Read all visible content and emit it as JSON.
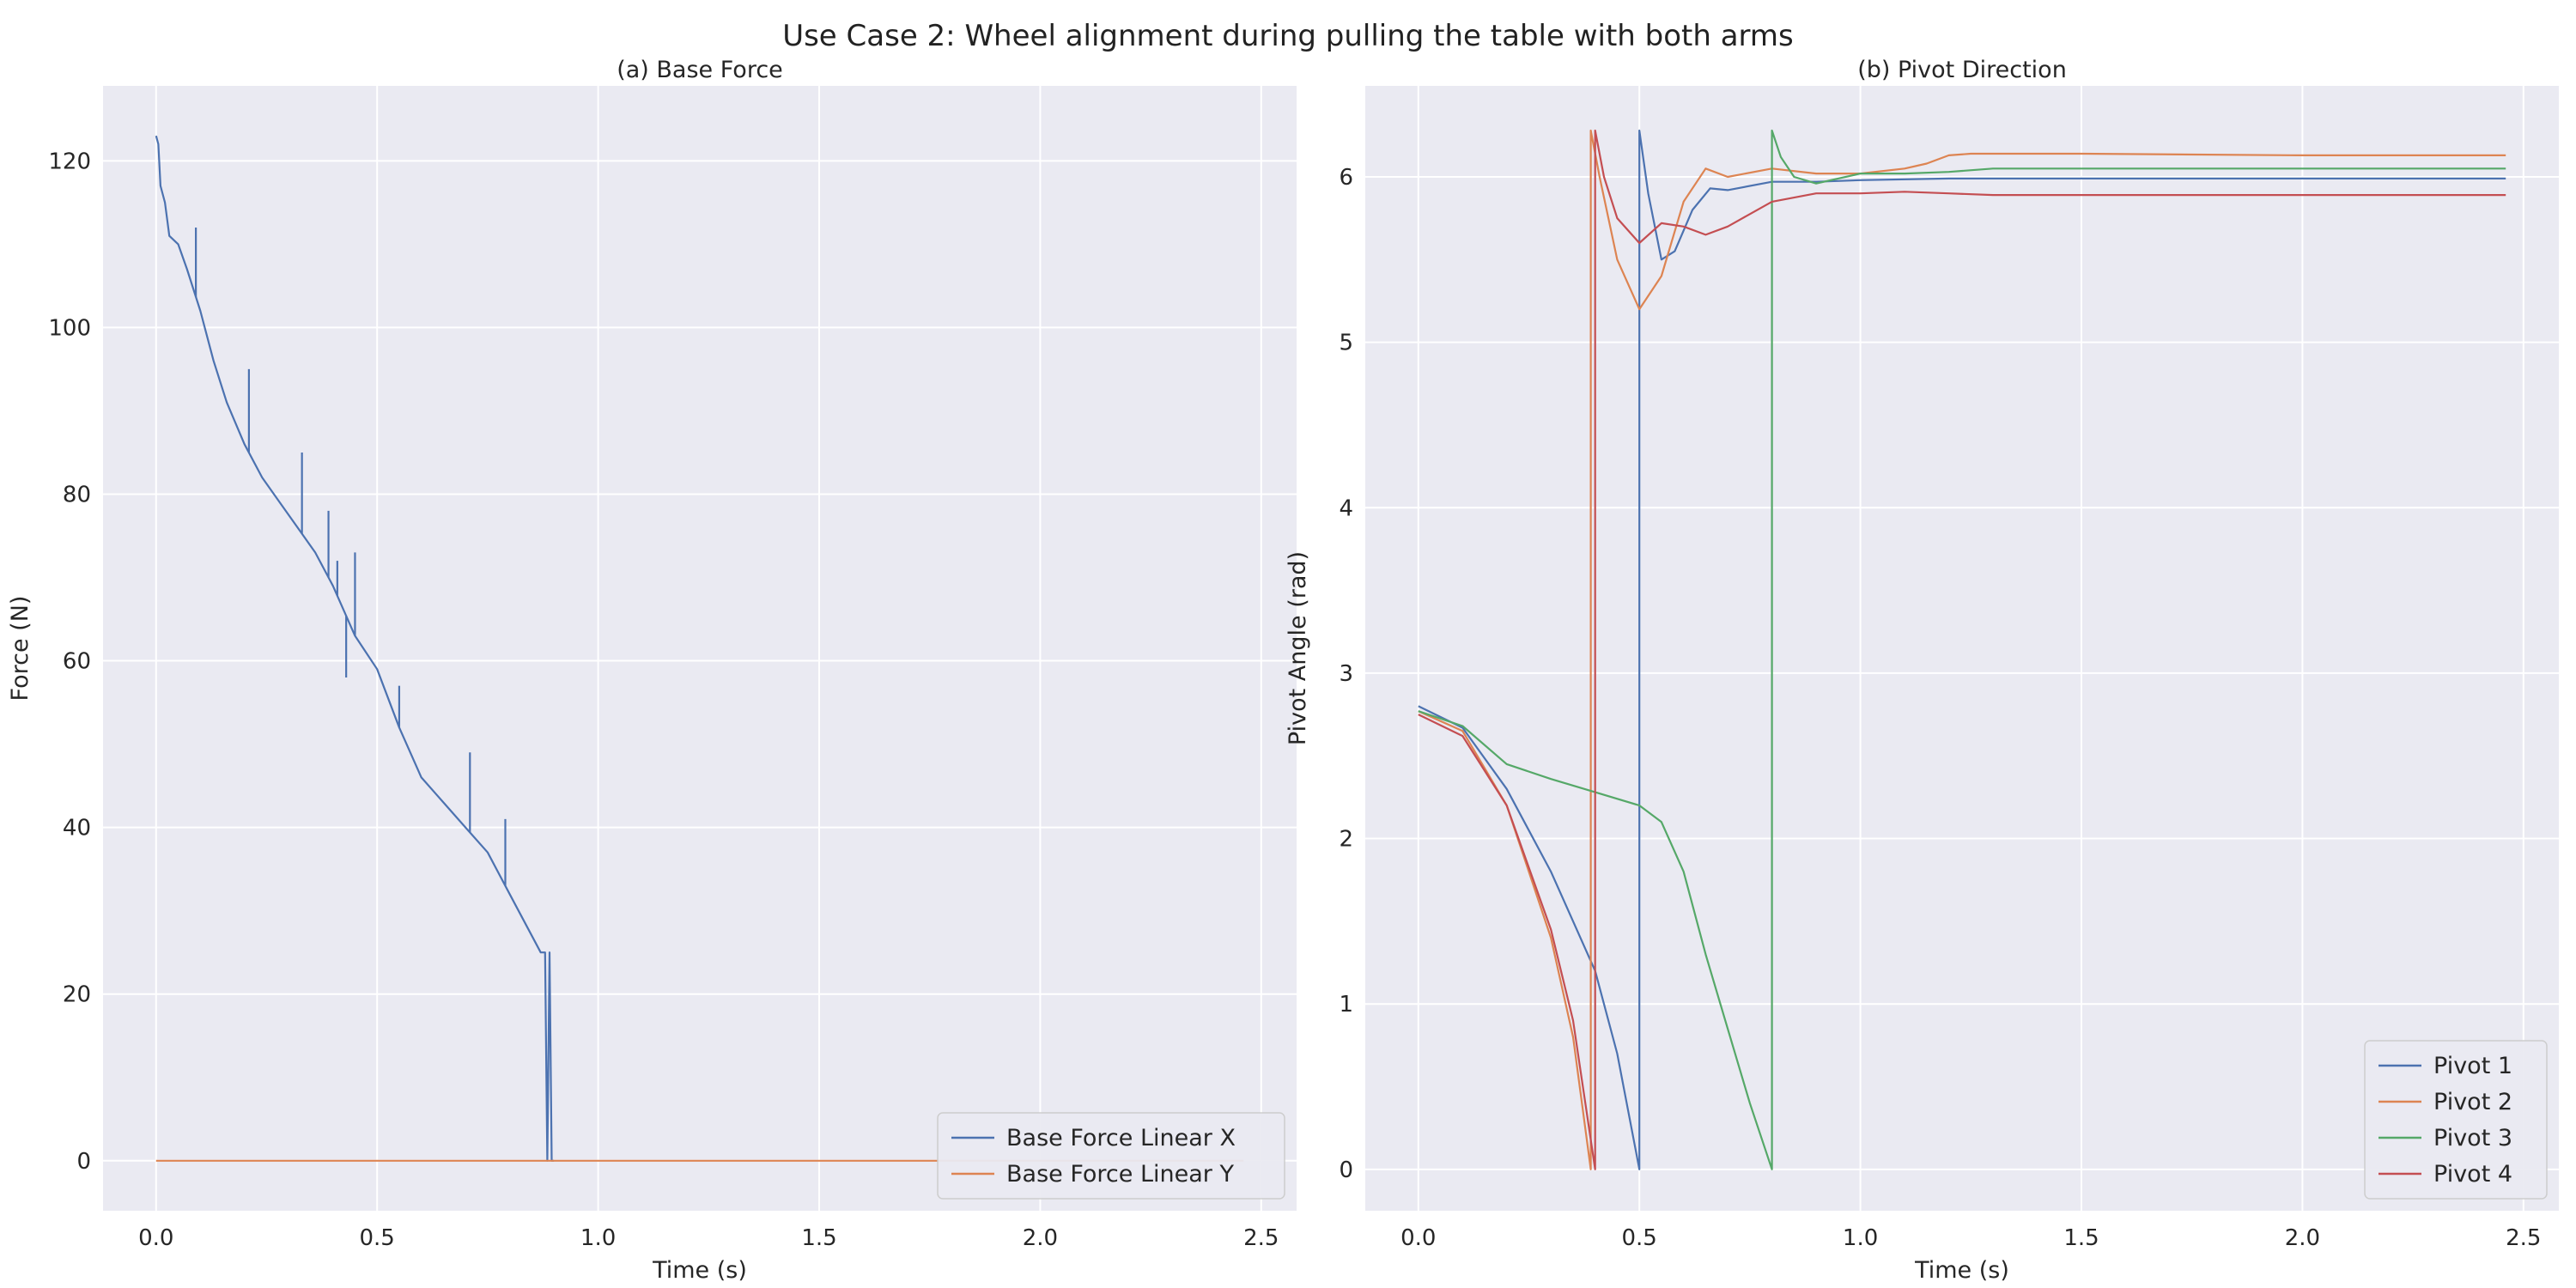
{
  "figure": {
    "title": "Use Case 2: Wheel alignment during pulling the table with both arms"
  },
  "colors": {
    "panel_bg": "#eaeaf2",
    "grid": "#ffffff",
    "text": "#262626",
    "series": [
      "#4c72b0",
      "#dd8452",
      "#55a868",
      "#c44e52"
    ]
  },
  "chart_data": [
    {
      "type": "line",
      "title": "(a) Base Force",
      "xlabel": "Time (s)",
      "ylabel": "Force (N)",
      "xlim": [
        -0.12,
        2.58
      ],
      "ylim": [
        -6,
        129
      ],
      "xticks": [
        0.0,
        0.5,
        1.0,
        1.5,
        2.0,
        2.5
      ],
      "xtick_labels": [
        "0.0",
        "0.5",
        "1.0",
        "1.5",
        "2.0",
        "2.5"
      ],
      "yticks": [
        0,
        20,
        40,
        60,
        80,
        100,
        120
      ],
      "ytick_labels": [
        "0",
        "20",
        "40",
        "60",
        "80",
        "100",
        "120"
      ],
      "grid": true,
      "legend": "bottom-right",
      "series": [
        {
          "name": "Base Force Linear X",
          "x": [
            0.0,
            0.005,
            0.01,
            0.02,
            0.03,
            0.05,
            0.07,
            0.1,
            0.13,
            0.16,
            0.2,
            0.24,
            0.28,
            0.32,
            0.36,
            0.4,
            0.45,
            0.5,
            0.55,
            0.6,
            0.65,
            0.7,
            0.75,
            0.8,
            0.85,
            0.87,
            0.88,
            0.885,
            0.89,
            0.895,
            0.9
          ],
          "y": [
            123,
            122,
            117,
            115,
            111,
            110,
            107,
            102,
            96,
            91,
            86,
            82,
            79,
            76,
            73,
            69,
            63,
            59,
            52,
            46,
            43,
            40,
            37,
            32,
            27,
            25,
            25,
            0,
            25,
            0,
            0
          ],
          "spikes": [
            [
              0.09,
              112
            ],
            [
              0.21,
              95
            ],
            [
              0.33,
              85
            ],
            [
              0.39,
              78
            ],
            [
              0.41,
              72
            ],
            [
              0.43,
              58
            ],
            [
              0.45,
              73
            ],
            [
              0.55,
              57
            ],
            [
              0.71,
              49
            ],
            [
              0.79,
              41
            ]
          ]
        },
        {
          "name": "Base Force Linear Y",
          "x": [
            0.0,
            2.46
          ],
          "y": [
            0,
            0
          ]
        }
      ]
    },
    {
      "type": "line",
      "title": "(b) Pivot Direction",
      "xlabel": "Time (s)",
      "ylabel": "Pivot Angle (rad)",
      "xlim": [
        -0.12,
        2.58
      ],
      "ylim": [
        -0.25,
        6.55
      ],
      "xticks": [
        0.0,
        0.5,
        1.0,
        1.5,
        2.0,
        2.5
      ],
      "xtick_labels": [
        "0.0",
        "0.5",
        "1.0",
        "1.5",
        "2.0",
        "2.5"
      ],
      "yticks": [
        0,
        1,
        2,
        3,
        4,
        5,
        6
      ],
      "ytick_labels": [
        "0",
        "1",
        "2",
        "3",
        "4",
        "5",
        "6"
      ],
      "grid": true,
      "legend": "bottom-right",
      "series": [
        {
          "name": "Pivot 1",
          "x": [
            0.0,
            0.1,
            0.2,
            0.3,
            0.35,
            0.4,
            0.45,
            0.5,
            0.5,
            0.52,
            0.55,
            0.58,
            0.62,
            0.66,
            0.7,
            0.8,
            0.9,
            1.0,
            1.2,
            1.5,
            2.0,
            2.46
          ],
          "y": [
            2.8,
            2.67,
            2.3,
            1.8,
            1.5,
            1.2,
            0.7,
            0.0,
            6.28,
            5.9,
            5.5,
            5.55,
            5.8,
            5.93,
            5.92,
            5.97,
            5.97,
            5.98,
            5.99,
            5.99,
            5.99,
            5.99
          ]
        },
        {
          "name": "Pivot 2",
          "x": [
            0.0,
            0.1,
            0.2,
            0.3,
            0.35,
            0.39,
            0.39,
            0.41,
            0.45,
            0.5,
            0.55,
            0.6,
            0.65,
            0.7,
            0.8,
            0.9,
            1.0,
            1.1,
            1.15,
            1.2,
            1.25,
            1.5,
            2.0,
            2.46
          ],
          "y": [
            2.77,
            2.65,
            2.2,
            1.4,
            0.8,
            0.0,
            6.28,
            6.0,
            5.5,
            5.2,
            5.4,
            5.85,
            6.05,
            6.0,
            6.05,
            6.02,
            6.02,
            6.05,
            6.08,
            6.13,
            6.14,
            6.14,
            6.13,
            6.13
          ]
        },
        {
          "name": "Pivot 3",
          "x": [
            0.0,
            0.1,
            0.2,
            0.3,
            0.4,
            0.5,
            0.55,
            0.6,
            0.65,
            0.7,
            0.75,
            0.8,
            0.8,
            0.82,
            0.85,
            0.9,
            1.0,
            1.1,
            1.2,
            1.3,
            1.5,
            2.0,
            2.46
          ],
          "y": [
            2.77,
            2.68,
            2.45,
            2.36,
            2.28,
            2.2,
            2.1,
            1.8,
            1.3,
            0.85,
            0.4,
            0.0,
            6.28,
            6.12,
            6.0,
            5.96,
            6.02,
            6.02,
            6.03,
            6.05,
            6.05,
            6.05,
            6.05
          ]
        },
        {
          "name": "Pivot 4",
          "x": [
            0.0,
            0.1,
            0.2,
            0.3,
            0.35,
            0.4,
            0.4,
            0.42,
            0.45,
            0.5,
            0.55,
            0.6,
            0.65,
            0.7,
            0.8,
            0.9,
            1.0,
            1.1,
            1.2,
            1.3,
            1.5,
            2.0,
            2.46
          ],
          "y": [
            2.75,
            2.62,
            2.2,
            1.45,
            0.9,
            0.0,
            6.28,
            6.0,
            5.75,
            5.6,
            5.72,
            5.7,
            5.65,
            5.7,
            5.85,
            5.9,
            5.9,
            5.91,
            5.9,
            5.89,
            5.89,
            5.89,
            5.89
          ]
        }
      ]
    }
  ]
}
